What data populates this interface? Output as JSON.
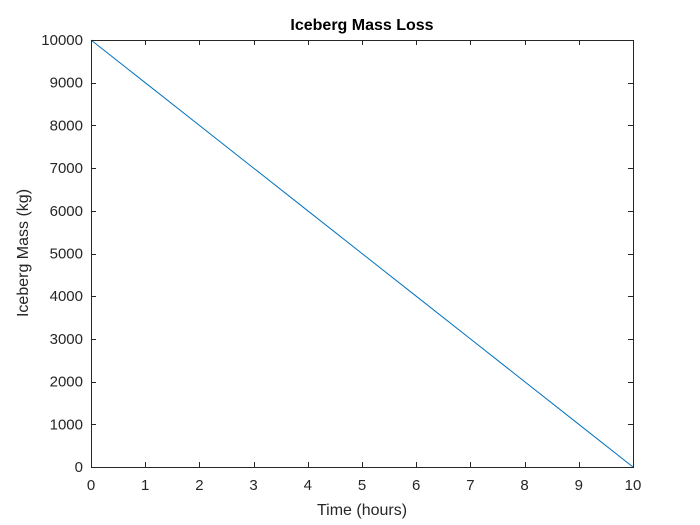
{
  "chart_data": {
    "type": "line",
    "title": "Iceberg Mass Loss",
    "xlabel": "Time (hours)",
    "ylabel": "Iceberg Mass (kg)",
    "xlim": [
      0,
      10
    ],
    "ylim": [
      0,
      10000
    ],
    "xticks": [
      0,
      1,
      2,
      3,
      4,
      5,
      6,
      7,
      8,
      9,
      10
    ],
    "yticks": [
      0,
      1000,
      2000,
      3000,
      4000,
      5000,
      6000,
      7000,
      8000,
      9000,
      10000
    ],
    "grid": false,
    "legend": "none",
    "series": [
      {
        "color": "#0072bd",
        "x": [
          0,
          1,
          2,
          3,
          4,
          5,
          6,
          7,
          8,
          9,
          10
        ],
        "y": [
          10000,
          9000,
          8000,
          7000,
          6000,
          5000,
          4000,
          3000,
          2000,
          1000,
          0
        ]
      }
    ]
  }
}
